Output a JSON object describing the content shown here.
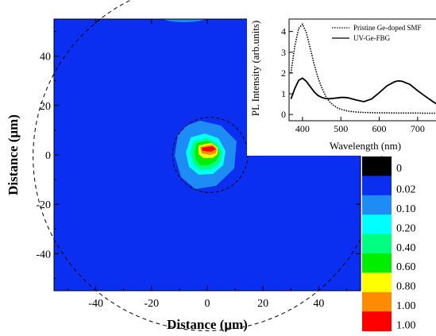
{
  "chart_data": [
    {
      "type": "heatmap",
      "title": "",
      "xlabel": "Distance (μm)",
      "ylabel": "Distance (μm)",
      "xlim": [
        -55,
        55
      ],
      "ylim": [
        -55,
        55
      ],
      "x_ticks": [
        -40,
        -20,
        0,
        20,
        40
      ],
      "y_ticks": [
        -40,
        -20,
        0,
        20,
        40
      ],
      "background_color": "#0a2ff0",
      "fiber_cladding_radius": 62.5,
      "core_radius": 4.5,
      "hot_spot_center": [
        2,
        2
      ],
      "legend": {
        "entries": [
          {
            "label": "0",
            "color": "#000000"
          },
          {
            "label": "0.02",
            "color": "#0a2ff0"
          },
          {
            "label": "0.10",
            "color": "#1e8cf5"
          },
          {
            "label": "0.20",
            "color": "#00ffff"
          },
          {
            "label": "0.40",
            "color": "#00ff80"
          },
          {
            "label": "0.60",
            "color": "#00ee00"
          },
          {
            "label": "0.80",
            "color": "#ffff00"
          },
          {
            "label": "1.00",
            "color": "#ff8c00"
          },
          {
            "label": "1.00",
            "color": "#ff0000"
          }
        ]
      }
    },
    {
      "type": "line",
      "title": "",
      "xlabel": "Wavelength (nm)",
      "ylabel": "PL Intensity (arb.units)",
      "xlim": [
        365,
        750
      ],
      "ylim": [
        -0.3,
        4.6
      ],
      "x_ticks": [
        400,
        500,
        600,
        700
      ],
      "y_ticks": [
        0,
        1,
        2,
        3,
        4
      ],
      "legend_position": "top-right",
      "series": [
        {
          "name": "Pristine Ge-doped SMF",
          "style": "dotted",
          "x": [
            370,
            380,
            390,
            400,
            410,
            420,
            430,
            440,
            450,
            460,
            470,
            480,
            490,
            500,
            520,
            540,
            560,
            580,
            600,
            620,
            650,
            680,
            700,
            720,
            750
          ],
          "y": [
            2.0,
            3.3,
            4.15,
            4.35,
            3.95,
            3.2,
            2.45,
            1.8,
            1.3,
            0.9,
            0.62,
            0.45,
            0.33,
            0.25,
            0.16,
            0.12,
            0.1,
            0.09,
            0.08,
            0.08,
            0.07,
            0.07,
            0.07,
            0.06,
            0.06
          ]
        },
        {
          "name": "UV-Ge-FBG",
          "style": "solid",
          "x": [
            370,
            380,
            390,
            400,
            410,
            420,
            430,
            440,
            450,
            460,
            470,
            480,
            490,
            500,
            510,
            520,
            540,
            560,
            580,
            600,
            620,
            640,
            650,
            660,
            680,
            700,
            720,
            740,
            750
          ],
          "y": [
            0.75,
            1.25,
            1.65,
            1.75,
            1.6,
            1.35,
            1.1,
            0.92,
            0.82,
            0.77,
            0.76,
            0.78,
            0.8,
            0.82,
            0.82,
            0.8,
            0.7,
            0.62,
            0.75,
            1.05,
            1.38,
            1.58,
            1.62,
            1.6,
            1.45,
            1.15,
            0.88,
            0.62,
            0.5
          ]
        }
      ]
    }
  ]
}
